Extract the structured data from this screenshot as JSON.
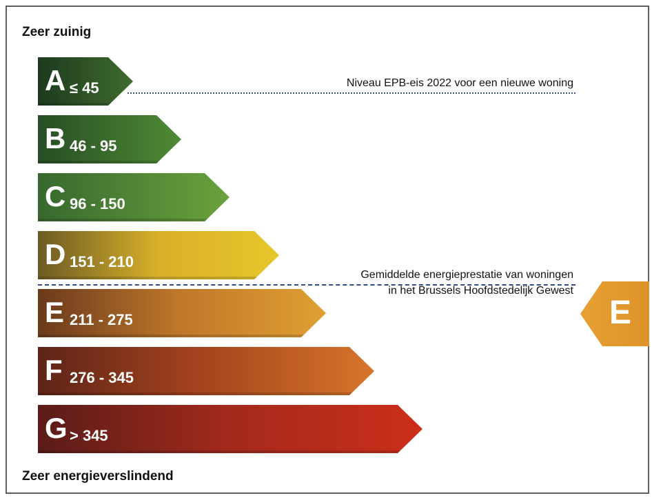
{
  "labels": {
    "top": "Zeer zuinig",
    "bottom": "Zeer energieverslindend"
  },
  "classes": [
    {
      "letter": "A",
      "range": "≤ 45"
    },
    {
      "letter": "B",
      "range": "46 - 95"
    },
    {
      "letter": "C",
      "range": "96 - 150"
    },
    {
      "letter": "D",
      "range": "151 - 210"
    },
    {
      "letter": "E",
      "range": "211 - 275"
    },
    {
      "letter": "F",
      "range": "276 - 345"
    },
    {
      "letter": "G",
      "range": "> 345"
    }
  ],
  "annotations": {
    "requirement": "Niveau EPB-eis 2022 voor een nieuwe woning",
    "average_line1": "Gemiddelde energieprestatie van woningen",
    "average_line2": "in het Brussels Hoofdstedelijk Gewest"
  },
  "marker": {
    "letter": "E"
  },
  "colors": {
    "A": "#2e5226",
    "B": "#3d7230",
    "C": "#569038",
    "D": "#d8b02a",
    "E": "#c0782a",
    "F": "#a8441e",
    "G": "#b82a1c",
    "marker": "#e29a2e"
  }
}
